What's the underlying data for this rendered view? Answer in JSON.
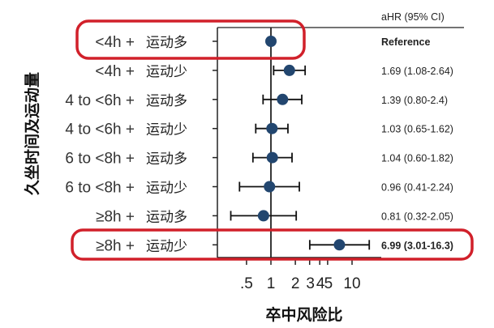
{
  "chart_data": {
    "type": "forest",
    "column_header": "aHR (95% CI)",
    "xlabel": "卒中风险比",
    "ylabel": "久坐时间及运动量",
    "x_scale": "log",
    "xlim": [
      0.3,
      20
    ],
    "reference_line": 1,
    "x_ticks": [
      0.5,
      1,
      2,
      3,
      4,
      5,
      10
    ],
    "x_tick_labels": [
      ".5",
      "1",
      "2",
      "3",
      "4",
      "5",
      "10"
    ],
    "rows": [
      {
        "sitting": "<4h +",
        "exercise": "运动多",
        "hr": 1,
        "lo": null,
        "hi": null,
        "label": "Reference",
        "bold": true,
        "highlight": true
      },
      {
        "sitting": "<4h +",
        "exercise": "运动少",
        "hr": 1.69,
        "lo": 1.08,
        "hi": 2.64,
        "label": "1.69 (1.08-2.64)"
      },
      {
        "sitting": "4 to <6h +",
        "exercise": "运动多",
        "hr": 1.39,
        "lo": 0.8,
        "hi": 2.4,
        "label": "1.39 (0.80-2.4)"
      },
      {
        "sitting": "4 to <6h +",
        "exercise": "运动少",
        "hr": 1.03,
        "lo": 0.65,
        "hi": 1.62,
        "label": "1.03 (0.65-1.62)"
      },
      {
        "sitting": "6 to <8h +",
        "exercise": "运动多",
        "hr": 1.04,
        "lo": 0.6,
        "hi": 1.82,
        "label": "1.04 (0.60-1.82)"
      },
      {
        "sitting": "6 to <8h +",
        "exercise": "运动少",
        "hr": 0.96,
        "lo": 0.41,
        "hi": 2.24,
        "label": "0.96 (0.41-2.24)"
      },
      {
        "sitting": "≥8h +",
        "exercise": "运动多",
        "hr": 0.81,
        "lo": 0.32,
        "hi": 2.05,
        "label": "0.81 (0.32-2.05)"
      },
      {
        "sitting": "≥8h +",
        "exercise": "运动少",
        "hr": 6.99,
        "lo": 3.01,
        "hi": 16.3,
        "label": "6.99 (3.01-16.3)",
        "bold": true,
        "highlight": true
      }
    ],
    "colors": {
      "point": "#22466f",
      "highlight_box": "#d1202a",
      "axis": "#222222"
    }
  }
}
